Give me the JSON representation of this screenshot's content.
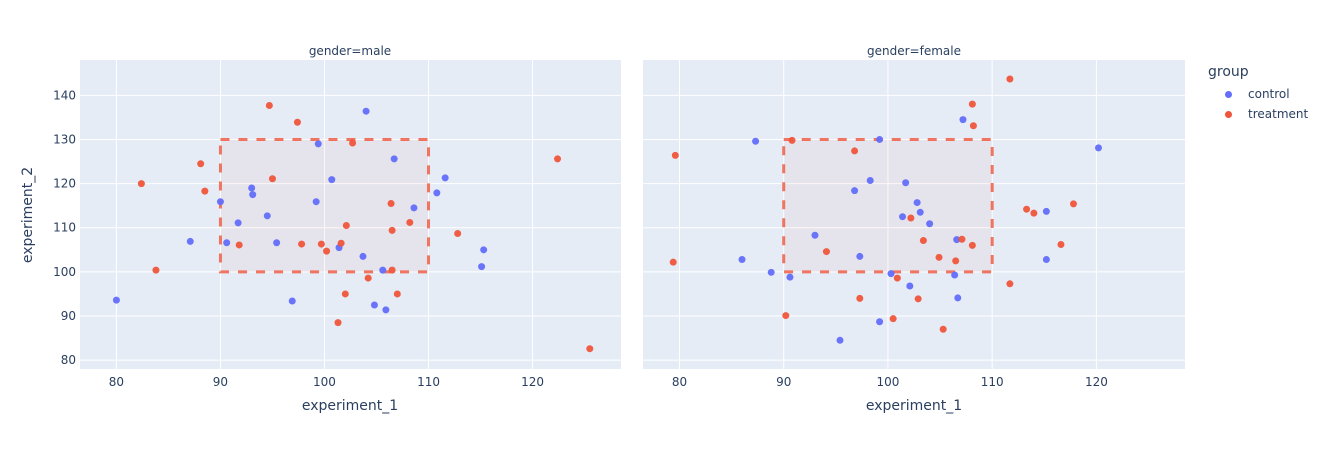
{
  "chart_data": {
    "type": "scatter",
    "xlabel": "experiment_1",
    "ylabel": "experiment_2",
    "xlim": [
      76.5,
      128.5
    ],
    "ylim": [
      78,
      148
    ],
    "x_ticks": [
      80,
      90,
      100,
      110,
      120
    ],
    "y_ticks": [
      80,
      90,
      100,
      110,
      120,
      130,
      140
    ],
    "grid": true,
    "legend": {
      "title": "group",
      "position": "right",
      "entries": [
        "control",
        "treatment"
      ]
    },
    "colors": {
      "control": "#636efa",
      "treatment": "#ef553b",
      "plot_bg": "#e5ecf6",
      "grid": "#ffffff",
      "shape_line": "#ef553b",
      "shape_fill": "rgba(239,85,59,0.05)"
    },
    "shape": {
      "type": "rect",
      "x0": 90,
      "x1": 110,
      "y0": 100,
      "y1": 130,
      "line": "dash"
    },
    "facets": [
      {
        "title": "gender=male",
        "series": [
          {
            "name": "control",
            "points": [
              [
                80,
                93.6
              ],
              [
                87.1,
                106.9
              ],
              [
                90,
                115.9
              ],
              [
                90.6,
                106.6
              ],
              [
                91.7,
                111.1
              ],
              [
                93,
                119
              ],
              [
                93.1,
                117.5
              ],
              [
                94.5,
                112.7
              ],
              [
                95.4,
                106.6
              ],
              [
                96.9,
                93.4
              ],
              [
                99.2,
                115.9
              ],
              [
                99.4,
                129
              ],
              [
                100.7,
                120.9
              ],
              [
                101.4,
                105.5
              ],
              [
                103.7,
                103.5
              ],
              [
                104,
                136.4
              ],
              [
                104.8,
                92.5
              ],
              [
                105.6,
                100.4
              ],
              [
                105.9,
                91.4
              ],
              [
                106.7,
                125.6
              ],
              [
                108.6,
                114.5
              ],
              [
                110.8,
                117.9
              ],
              [
                111.6,
                121.3
              ],
              [
                115.3,
                105
              ],
              [
                115.1,
                101.2
              ]
            ]
          },
          {
            "name": "treatment",
            "points": [
              [
                82.4,
                120
              ],
              [
                83.8,
                100.4
              ],
              [
                88.1,
                124.5
              ],
              [
                88.5,
                118.3
              ],
              [
                91.8,
                106.1
              ],
              [
                94.7,
                137.7
              ],
              [
                95,
                121.1
              ],
              [
                97.4,
                133.9
              ],
              [
                97.8,
                106.3
              ],
              [
                99.7,
                106.3
              ],
              [
                100.2,
                104.7
              ],
              [
                101.3,
                88.5
              ],
              [
                101.6,
                106.5
              ],
              [
                102,
                95
              ],
              [
                102.1,
                110.5
              ],
              [
                102.7,
                129.2
              ],
              [
                104.2,
                98.6
              ],
              [
                106.4,
                115.5
              ],
              [
                106.5,
                100.4
              ],
              [
                106.5,
                109.4
              ],
              [
                107,
                95
              ],
              [
                108.2,
                111.2
              ],
              [
                112.8,
                108.7
              ],
              [
                122.4,
                125.6
              ],
              [
                125.5,
                82.6
              ]
            ]
          }
        ]
      },
      {
        "title": "gender=female",
        "series": [
          {
            "name": "control",
            "points": [
              [
                86,
                102.8
              ],
              [
                87.3,
                129.6
              ],
              [
                88.8,
                99.9
              ],
              [
                90.6,
                98.8
              ],
              [
                93,
                108.3
              ],
              [
                95.4,
                84.5
              ],
              [
                96.8,
                118.4
              ],
              [
                97.3,
                103.5
              ],
              [
                98.3,
                120.7
              ],
              [
                99.2,
                130
              ],
              [
                99.2,
                88.7
              ],
              [
                100.3,
                99.6
              ],
              [
                101.4,
                112.5
              ],
              [
                101.7,
                120.2
              ],
              [
                102.1,
                96.8
              ],
              [
                102.8,
                115.7
              ],
              [
                103.1,
                113.5
              ],
              [
                104,
                110.9
              ],
              [
                106.4,
                99.3
              ],
              [
                106.6,
                107.3
              ],
              [
                106.7,
                94.1
              ],
              [
                107.2,
                134.5
              ],
              [
                115.2,
                102.8
              ],
              [
                115.2,
                113.7
              ],
              [
                120.2,
                128.1
              ]
            ]
          },
          {
            "name": "treatment",
            "points": [
              [
                79.6,
                126.4
              ],
              [
                79.4,
                102.2
              ],
              [
                90.2,
                90.1
              ],
              [
                90.8,
                129.8
              ],
              [
                94.1,
                104.6
              ],
              [
                96.8,
                127.4
              ],
              [
                97.3,
                94
              ],
              [
                100.5,
                89.4
              ],
              [
                100.9,
                98.6
              ],
              [
                102.2,
                112.2
              ],
              [
                102.9,
                93.9
              ],
              [
                103.4,
                107.1
              ],
              [
                104.9,
                103.3
              ],
              [
                105.3,
                87
              ],
              [
                106.5,
                102.5
              ],
              [
                107.1,
                107.4
              ],
              [
                108.1,
                106
              ],
              [
                108.1,
                138
              ],
              [
                108.2,
                133.1
              ],
              [
                111.7,
                143.7
              ],
              [
                111.7,
                97.3
              ],
              [
                113.3,
                114.2
              ],
              [
                114,
                113.3
              ],
              [
                116.6,
                106.2
              ],
              [
                117.8,
                115.4
              ]
            ]
          }
        ]
      }
    ]
  },
  "legend": {
    "title": "group",
    "items": [
      {
        "label": "control",
        "color": "#636efa"
      },
      {
        "label": "treatment",
        "color": "#ef553b"
      }
    ]
  },
  "axes": {
    "xlabel": "experiment_1",
    "ylabel": "experiment_2"
  },
  "facets": [
    {
      "title": "gender=male"
    },
    {
      "title": "gender=female"
    }
  ]
}
